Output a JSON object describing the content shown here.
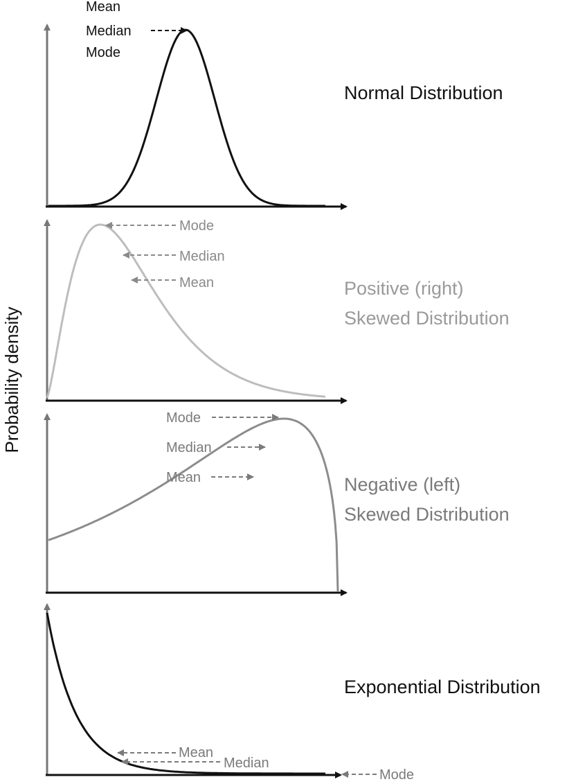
{
  "ylabel": "Probability density",
  "colors": {
    "black": "#111111",
    "axis": "#777777",
    "light_gray": "#bdbdbd",
    "mid_gray": "#8c8c8c",
    "label_gray": "#8a8a8a",
    "dark_label_gray": "#7a7a7a"
  },
  "panels": [
    {
      "id": "normal",
      "title_lines": [
        "Normal Distribution"
      ],
      "curve_type": "gaussian",
      "color": "black",
      "annotations": [
        {
          "text": "Mean"
        },
        {
          "text": "Median"
        },
        {
          "text": "Mode"
        }
      ]
    },
    {
      "id": "positive",
      "title_lines": [
        "Positive (right)",
        "Skewed Distribution"
      ],
      "curve_type": "right-skewed",
      "color": "light_gray",
      "annotations": [
        {
          "text": "Mode"
        },
        {
          "text": "Median"
        },
        {
          "text": "Mean"
        }
      ]
    },
    {
      "id": "negative",
      "title_lines": [
        "Negative (left)",
        "Skewed Distribution"
      ],
      "curve_type": "left-skewed",
      "color": "mid_gray",
      "annotations": [
        {
          "text": "Mode"
        },
        {
          "text": "Median"
        },
        {
          "text": "Mean"
        }
      ]
    },
    {
      "id": "exponential",
      "title_lines": [
        "Exponential Distribution"
      ],
      "curve_type": "exponential",
      "color": "black",
      "annotations": [
        {
          "text": "Mean"
        },
        {
          "text": "Median"
        },
        {
          "text": "Mode"
        }
      ]
    }
  ]
}
